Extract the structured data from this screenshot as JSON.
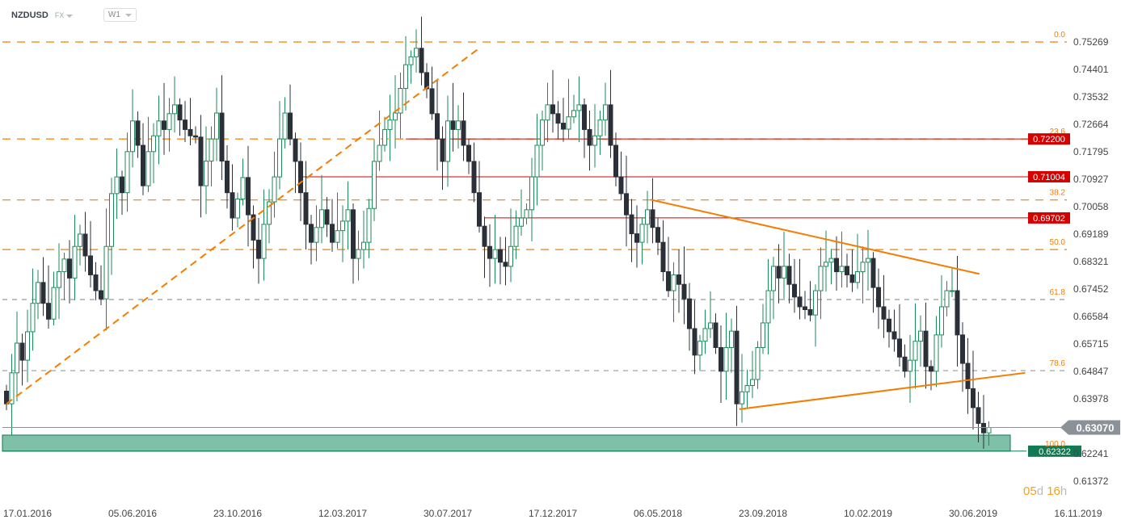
{
  "header": {
    "symbol": "NZDUSD",
    "market": "FX",
    "timeframe": "W1"
  },
  "countdown": {
    "days": "05",
    "d": "d",
    "hours": "16",
    "h": "h"
  },
  "colors": {
    "bull": "#1e8a5a",
    "bear": "#2b3038",
    "fib": "#f57c00",
    "resistance": "#d50000",
    "zone": "#7fc0a8",
    "zone_border": "#127a52",
    "price_line": "#8a9298"
  },
  "chart_data": {
    "type": "candlestick",
    "ylim": [
      0.61372,
      0.75269
    ],
    "y_ticks": [
      "0.75269",
      "0.74401",
      "0.73532",
      "0.72664",
      "0.71795",
      "0.70927",
      "0.70058",
      "0.69189",
      "0.68321",
      "0.67452",
      "0.66584",
      "0.65715",
      "0.64847",
      "0.63978",
      "0.62241",
      "0.61372"
    ],
    "x_ticks": [
      "17.01.2016",
      "05.06.2016",
      "23.10.2016",
      "12.03.2017",
      "30.07.2017",
      "17.12.2017",
      "06.05.2018",
      "23.09.2018",
      "10.02.2019",
      "30.06.2019",
      "16.11.2019"
    ],
    "closes": [
      0.6382,
      0.648,
      0.6574,
      0.652,
      0.661,
      0.67,
      0.6766,
      0.67,
      0.665,
      0.675,
      0.68,
      0.684,
      0.678,
      0.688,
      0.6919,
      0.685,
      0.679,
      0.674,
      0.6714,
      0.688,
      0.7047,
      0.71,
      0.705,
      0.718,
      0.7277,
      0.72,
      0.7072,
      0.718,
      0.723,
      0.7277,
      0.725,
      0.73,
      0.7328,
      0.728,
      0.725,
      0.723,
      0.7226,
      0.7072,
      0.715,
      0.722,
      0.7302,
      0.715,
      0.705,
      0.697,
      0.703,
      0.7098,
      0.698,
      0.69,
      0.6842,
      0.695,
      0.7021,
      0.71,
      0.722,
      0.7302,
      0.722,
      0.7149,
      0.705,
      0.695,
      0.6893,
      0.694,
      0.6996,
      0.695,
      0.6893,
      0.693,
      0.696,
      0.6996,
      0.6842,
      0.687,
      0.6893,
      0.7,
      0.7149,
      0.72,
      0.725,
      0.728,
      0.7302,
      0.738,
      0.7455,
      0.748,
      0.7507,
      0.743,
      0.7379,
      0.73,
      0.722,
      0.7149,
      0.7277,
      0.725,
      0.7277,
      0.72,
      0.7149,
      0.705,
      0.6944,
      0.688,
      0.6842,
      0.687,
      0.683,
      0.6817,
      0.688,
      0.6944,
      0.697,
      0.6996,
      0.71,
      0.72,
      0.728,
      0.7328,
      0.73,
      0.727,
      0.7251,
      0.729,
      0.731,
      0.7328,
      0.725,
      0.72,
      0.723,
      0.728,
      0.7328,
      0.72,
      0.71,
      0.7047,
      0.698,
      0.692,
      0.6893,
      0.695,
      0.6996,
      0.694,
      0.6893,
      0.68,
      0.674,
      0.679,
      0.676,
      0.6714,
      0.662,
      0.6536,
      0.658,
      0.662,
      0.6638,
      0.656,
      0.6485,
      0.656,
      0.6612,
      0.6382,
      0.642,
      0.644,
      0.6459,
      0.656,
      0.6638,
      0.674,
      0.6817,
      0.678,
      0.6817,
      0.676,
      0.672,
      0.6689,
      0.668,
      0.6663,
      0.674,
      0.6817,
      0.683,
      0.6842,
      0.68,
      0.6817,
      0.679,
      0.6766,
      0.68,
      0.683,
      0.6842,
      0.675,
      0.6689,
      0.665,
      0.661,
      0.6587,
      0.653,
      0.6485,
      0.652,
      0.658,
      0.6612,
      0.65,
      0.6485,
      0.66,
      0.6689,
      0.674,
      0.674,
      0.66,
      0.651,
      0.643,
      0.637,
      0.632,
      0.629,
      0.6307
    ],
    "current_price": "0.63070",
    "fibonacci": [
      {
        "label": "0.0",
        "price": 0.75269
      },
      {
        "label": "23.6",
        "price": 0.722
      },
      {
        "label": "38.2",
        "price": 0.7027
      },
      {
        "label": "50.0",
        "price": 0.687
      },
      {
        "label": "61.8",
        "price": 0.6712
      },
      {
        "label": "78.6",
        "price": 0.6487
      },
      {
        "label": "100.0",
        "price": 0.6232
      }
    ],
    "resistance_levels": [
      {
        "label": "0.72200",
        "price": 0.722,
        "from_bar": 76
      },
      {
        "label": "0.71004",
        "price": 0.71004,
        "from_bar": 56
      },
      {
        "label": "0.69702",
        "price": 0.69702,
        "from_bar": 91
      }
    ],
    "support_zone": {
      "label": "0.62322",
      "low": 0.62322,
      "high": 0.6283
    },
    "trendlines": [
      {
        "from_bar": 0,
        "from_price": 0.6382,
        "to_bar": 90.3,
        "to_price": 0.7511,
        "style": "dashed"
      },
      {
        "from_bar": 122.6,
        "from_price": 0.7028,
        "to_bar": 185.2,
        "to_price": 0.6793,
        "style": "solid"
      },
      {
        "from_bar": 139.5,
        "from_price": 0.6365,
        "to_bar": 193.9,
        "to_price": 0.648,
        "style": "solid"
      }
    ]
  }
}
